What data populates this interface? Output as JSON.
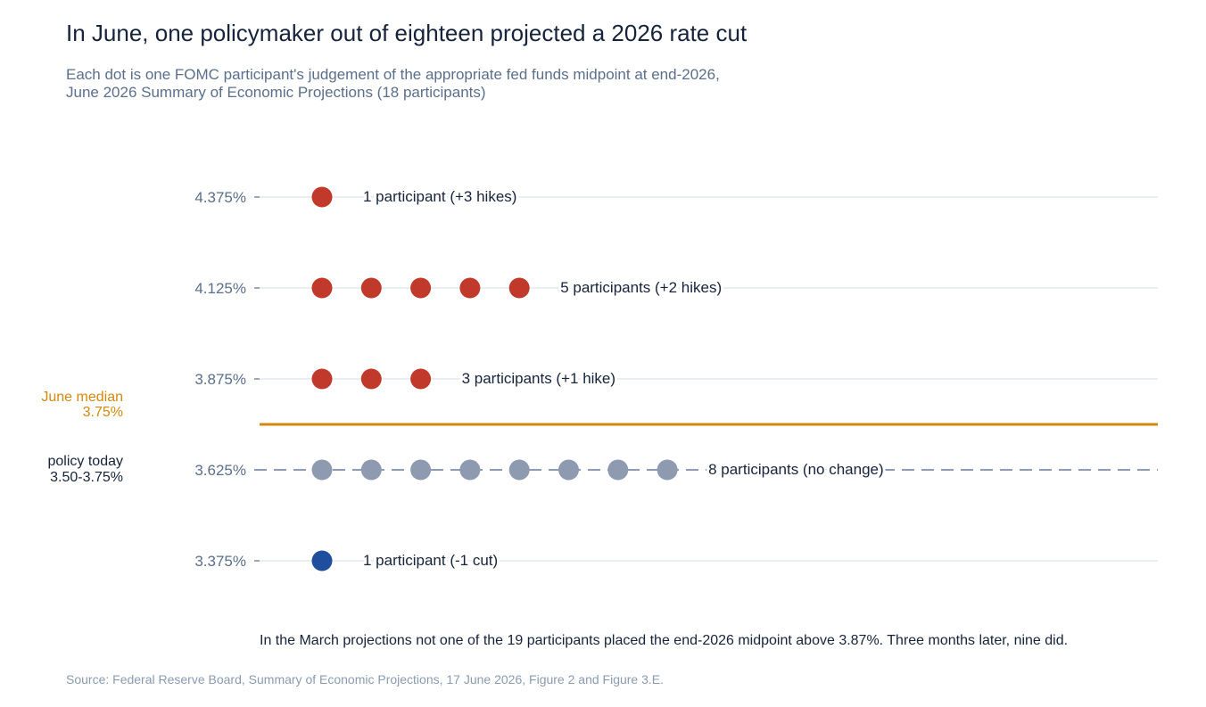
{
  "header": {
    "title": "In June, one policymaker out of eighteen projected a 2026 rate cut",
    "subtitle_line1": "Each dot is one FOMC participant's judgement of the appropriate fed funds midpoint at end-2026,",
    "subtitle_line2": "June 2026 Summary of Economic Projections (18 participants)"
  },
  "footer": {
    "source": "Source: Federal Reserve Board, Summary of Economic Projections, 17 June 2026, Figure 2 and Figure 3.E."
  },
  "chart_data": {
    "type": "scatter",
    "title": "In June, one policymaker out of eighteen projected a 2026 rate cut",
    "xlabel": "",
    "ylabel": "",
    "y_ticks": [
      "4.375%",
      "4.125%",
      "3.875%",
      "3.625%",
      "3.375%"
    ],
    "rows": [
      {
        "rate": 4.375,
        "tick": "4.375%",
        "count": 1,
        "label": "1 participant  (+3 hikes)",
        "category": "hike"
      },
      {
        "rate": 4.125,
        "tick": "4.125%",
        "count": 5,
        "label": "5 participants  (+2 hikes)",
        "category": "hike"
      },
      {
        "rate": 3.875,
        "tick": "3.875%",
        "count": 3,
        "label": "3 participants  (+1 hike)",
        "category": "hike"
      },
      {
        "rate": 3.625,
        "tick": "3.625%",
        "count": 8,
        "label": "8 participants  (no change)",
        "category": "hold"
      },
      {
        "rate": 3.375,
        "tick": "3.375%",
        "count": 1,
        "label": "1 participant  (-1 cut)",
        "category": "cut"
      }
    ],
    "median": {
      "value": 3.75,
      "label_line1": "June median",
      "label_line2": "3.75%"
    },
    "policy_today": {
      "value": 3.625,
      "label_line1": "policy today",
      "label_line2": "3.50-3.75%"
    },
    "annotation": "In the March projections not one of the 19 participants placed the end-2026 midpoint above 3.87%. Three months later, nine did.",
    "grid": true,
    "colors": {
      "hike": "#c0392b",
      "hold": "#8d9ab0",
      "cut": "#1f4e9c",
      "median": "#d4880e",
      "grid": "#dde2ea",
      "policy_line": "#8d9ab0",
      "tick_text": "#5b6f8a",
      "label_text": "#16233a",
      "median_text": "#d4880e"
    }
  }
}
